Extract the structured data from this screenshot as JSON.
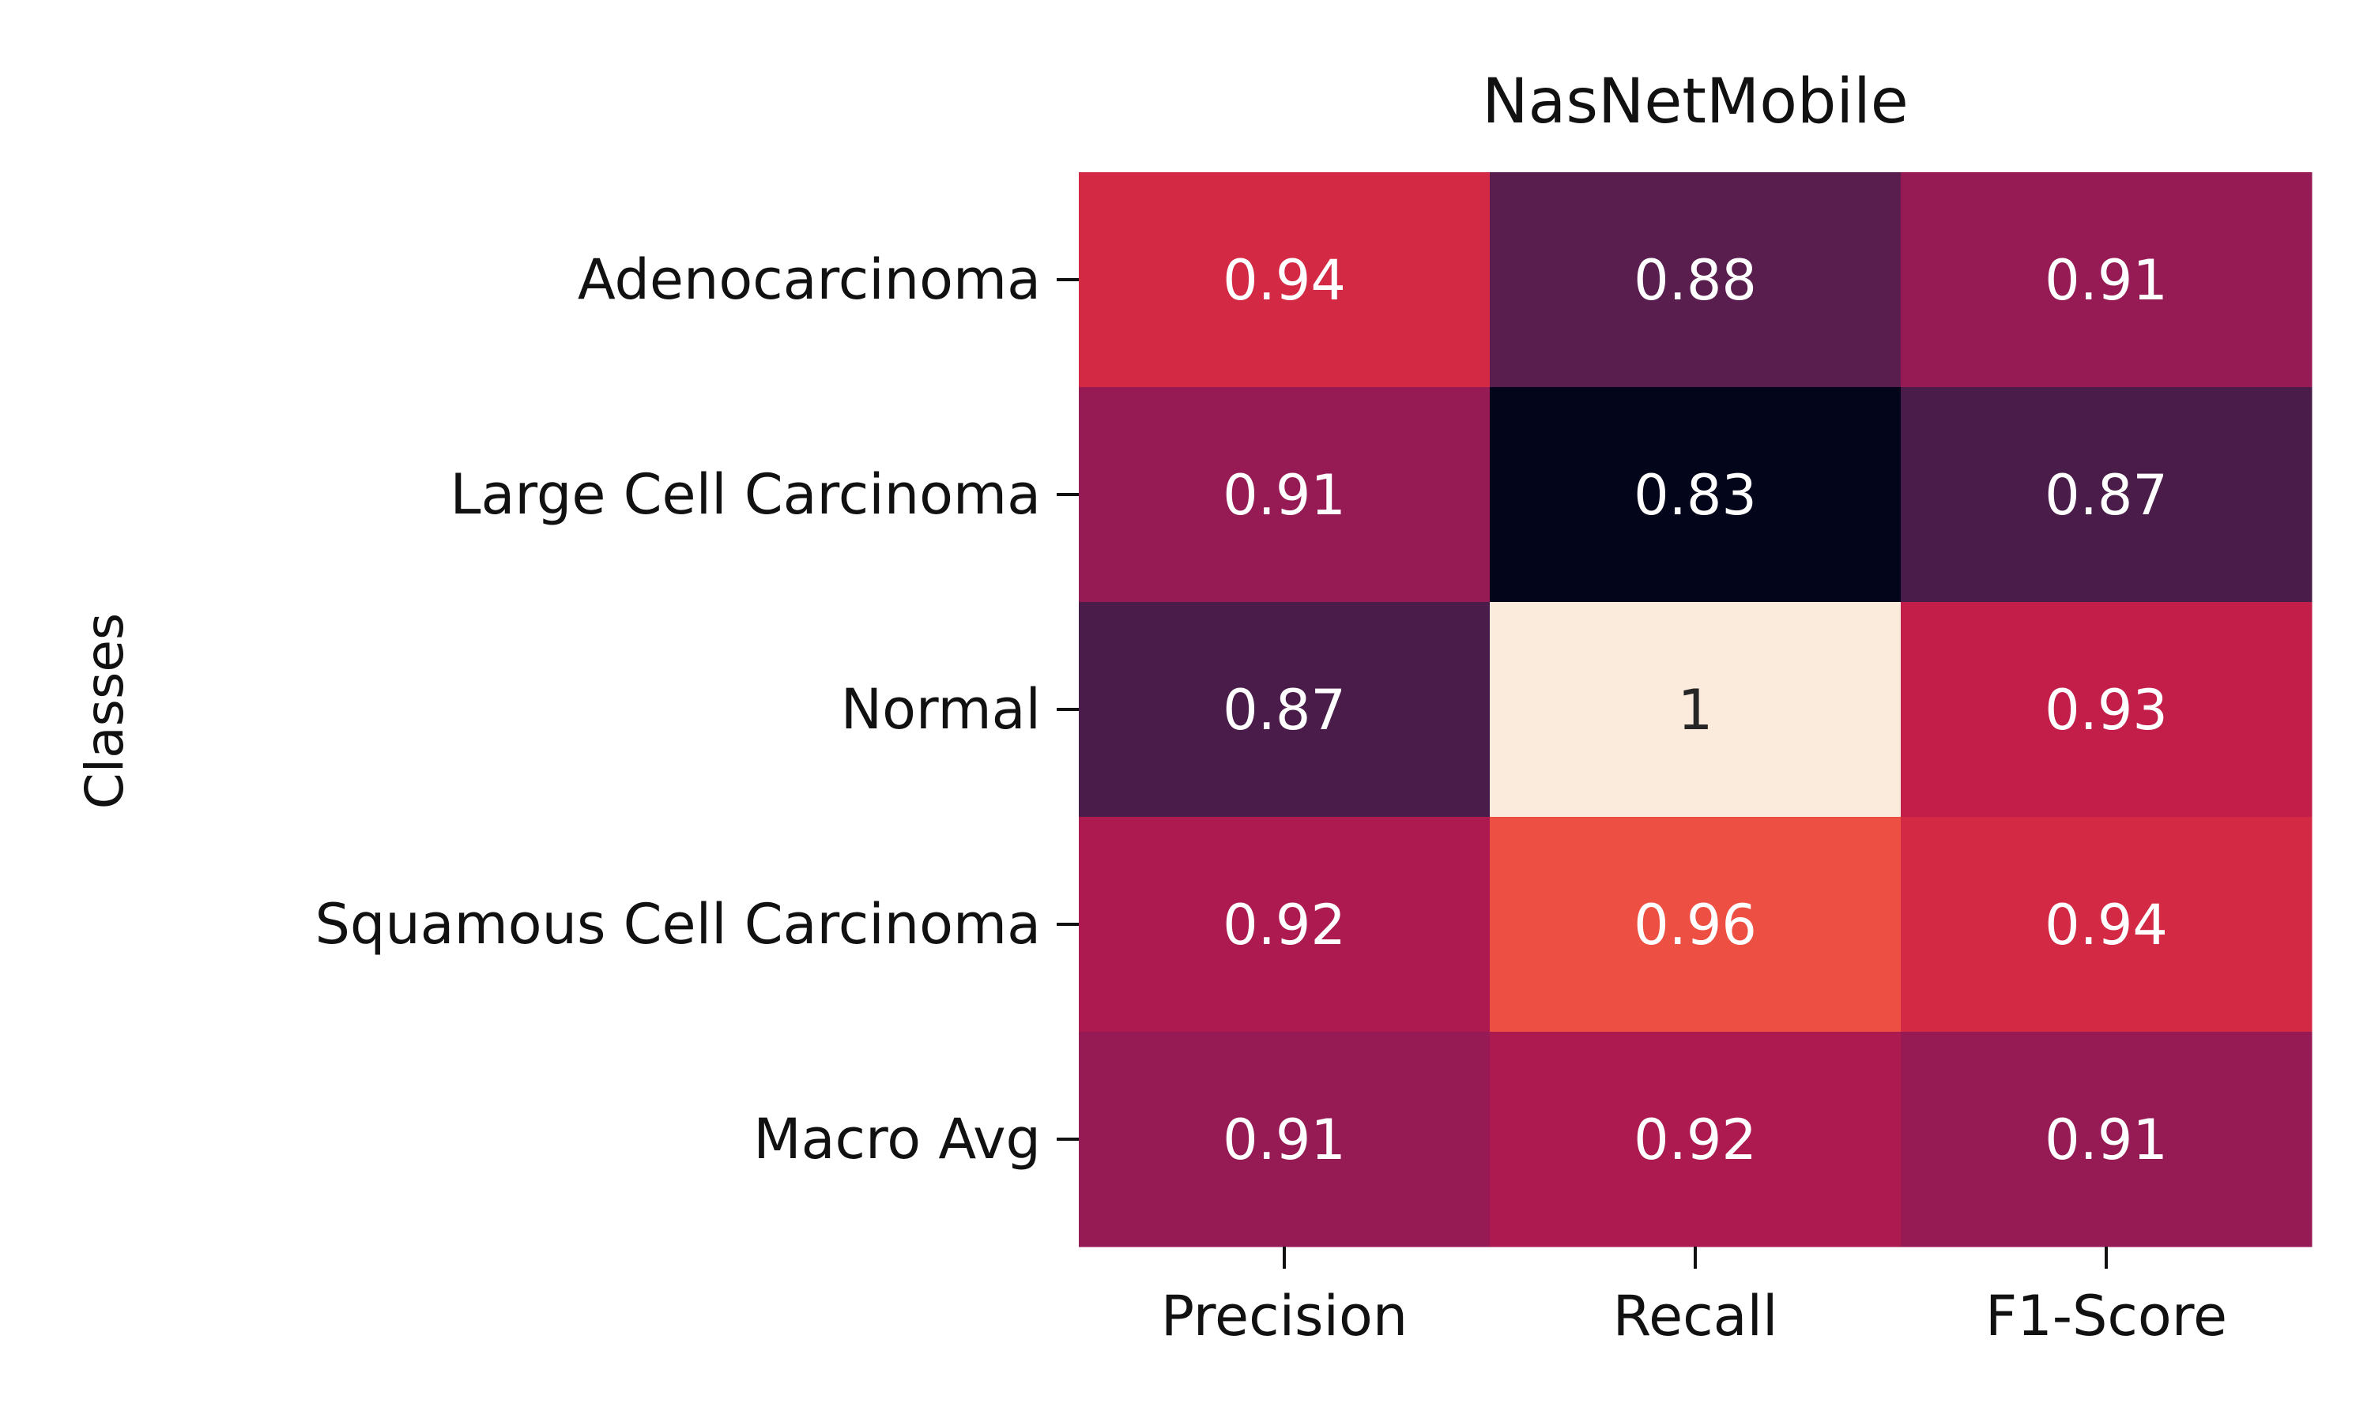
{
  "chart_data": {
    "type": "heatmap",
    "title": "NasNetMobile",
    "xlabel": "",
    "ylabel": "Classes",
    "columns": [
      "Precision",
      "Recall",
      "F1-Score"
    ],
    "rows": [
      "Adenocarcinoma",
      "Large Cell Carcinoma",
      "Normal",
      "Squamous Cell Carcinoma",
      "Macro Avg"
    ],
    "values": [
      [
        0.94,
        0.88,
        0.91
      ],
      [
        0.91,
        0.83,
        0.87
      ],
      [
        0.87,
        1,
        0.93
      ],
      [
        0.92,
        0.96,
        0.94
      ],
      [
        0.91,
        0.92,
        0.91
      ]
    ],
    "cell_labels": [
      [
        "0.94",
        "0.88",
        "0.91"
      ],
      [
        "0.91",
        "0.83",
        "0.87"
      ],
      [
        "0.87",
        "1",
        "0.93"
      ],
      [
        "0.92",
        "0.96",
        "0.94"
      ],
      [
        "0.91",
        "0.92",
        "0.91"
      ]
    ],
    "colormap": "rocket",
    "colorbar": false,
    "grid": false
  }
}
